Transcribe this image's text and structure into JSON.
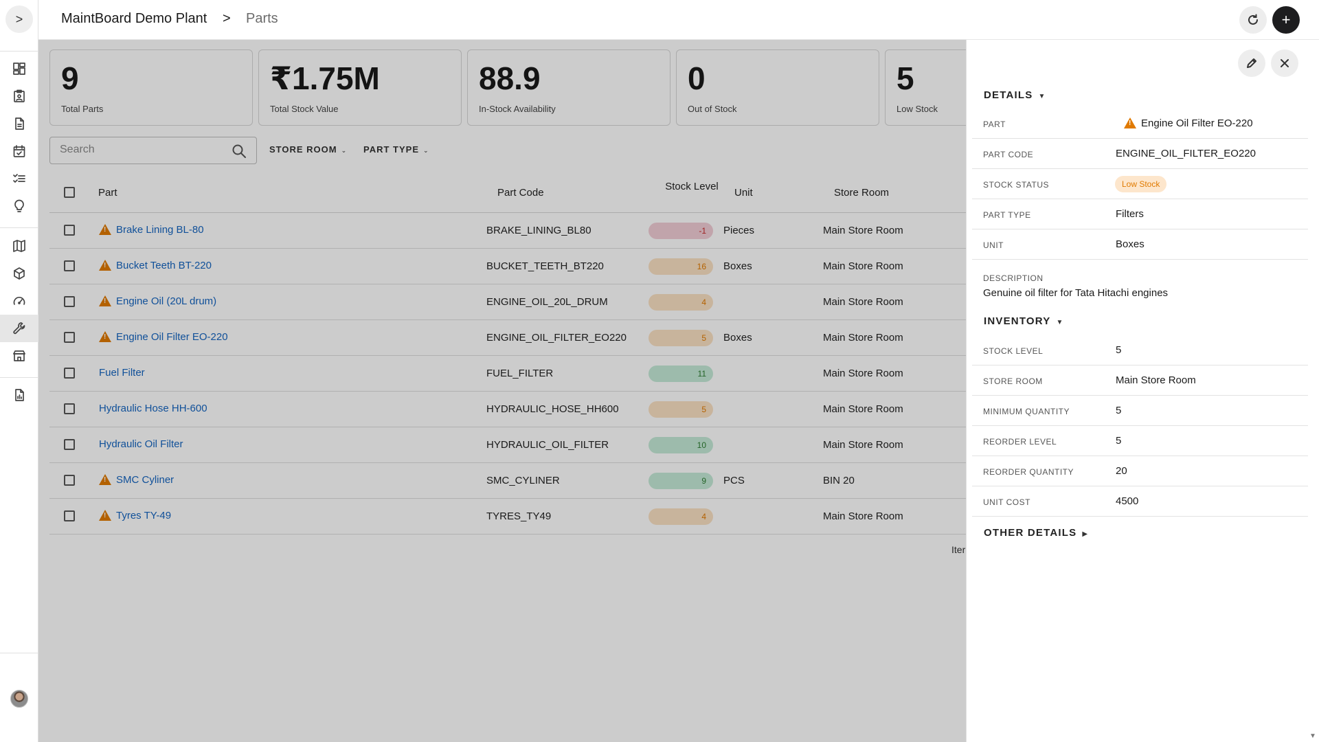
{
  "header": {
    "breadcrumb_root": "MaintBoard Demo Plant",
    "breadcrumb_separator": ">",
    "breadcrumb_current": "Parts",
    "add_label": "+"
  },
  "nav": {
    "toggle_label": ">",
    "items": [
      {
        "icon": "dashboard-icon"
      },
      {
        "icon": "clipboard-icon"
      },
      {
        "icon": "document-icon"
      },
      {
        "icon": "calendar-check-icon"
      },
      {
        "icon": "checklist-icon"
      },
      {
        "icon": "lightbulb-icon"
      },
      {
        "icon": "map-icon"
      },
      {
        "icon": "cube-icon"
      },
      {
        "icon": "gauge-icon"
      },
      {
        "icon": "wrench-icon",
        "active": true
      },
      {
        "icon": "store-icon"
      },
      {
        "icon": "report-icon"
      }
    ]
  },
  "stats": [
    {
      "value": "9",
      "label": "Total Parts"
    },
    {
      "value": "₹1.75M",
      "label": "Total Stock Value"
    },
    {
      "value": "88.9",
      "label": "In-Stock Availability"
    },
    {
      "value": "0",
      "label": "Out of Stock"
    },
    {
      "value": "5",
      "label": "Low Stock"
    }
  ],
  "toolbar": {
    "search_placeholder": "Search",
    "filter_store_room": "STORE ROOM",
    "filter_part_type": "PART TYPE"
  },
  "table": {
    "columns": {
      "part": "Part",
      "part_code": "Part Code",
      "stock_level": "Stock Level",
      "unit": "Unit",
      "store_room": "Store Room"
    },
    "rows": [
      {
        "name": "Brake Lining BL-80",
        "warning": true,
        "code": "BRAKE_LINING_BL80",
        "stock": "-1",
        "status": "neg",
        "unit": "Pieces",
        "store": "Main Store Room"
      },
      {
        "name": "Bucket Teeth BT-220",
        "warning": true,
        "code": "BUCKET_TEETH_BT220",
        "stock": "16",
        "status": "low",
        "unit": "Boxes",
        "store": "Main Store Room"
      },
      {
        "name": "Engine Oil (20L drum)",
        "warning": true,
        "code": "ENGINE_OIL_20L_DRUM",
        "stock": "4",
        "status": "low",
        "unit": "",
        "store": "Main Store Room"
      },
      {
        "name": "Engine Oil Filter EO-220",
        "warning": true,
        "code": "ENGINE_OIL_FILTER_EO220",
        "stock": "5",
        "status": "low",
        "unit": "Boxes",
        "store": "Main Store Room"
      },
      {
        "name": "Fuel Filter",
        "warning": false,
        "code": "FUEL_FILTER",
        "stock": "11",
        "status": "ok",
        "unit": "",
        "store": "Main Store Room"
      },
      {
        "name": "Hydraulic Hose HH-600",
        "warning": false,
        "code": "HYDRAULIC_HOSE_HH600",
        "stock": "5",
        "status": "low",
        "unit": "",
        "store": "Main Store Room"
      },
      {
        "name": "Hydraulic Oil Filter",
        "warning": false,
        "code": "HYDRAULIC_OIL_FILTER",
        "stock": "10",
        "status": "ok",
        "unit": "",
        "store": "Main Store Room"
      },
      {
        "name": "SMC Cyliner",
        "warning": true,
        "code": "SMC_CYLINER",
        "stock": "9",
        "status": "ok",
        "unit": "PCS",
        "store": "BIN 20"
      },
      {
        "name": "Tyres TY-49",
        "warning": true,
        "code": "TYRES_TY49",
        "stock": "4",
        "status": "low",
        "unit": "",
        "store": "Main Store Room"
      }
    ],
    "footer_partial": "Iter"
  },
  "panel": {
    "details_title": "DETAILS",
    "fields": [
      {
        "key": "PART",
        "value": "Engine Oil Filter EO-220"
      },
      {
        "key": "PART CODE",
        "value": "ENGINE_OIL_FILTER_EO220"
      },
      {
        "key": "STOCK STATUS",
        "value": "Low Stock"
      },
      {
        "key": "PART TYPE",
        "value": "Filters"
      },
      {
        "key": "UNIT",
        "value": "Boxes"
      }
    ],
    "description_key": "DESCRIPTION",
    "description_value": "Genuine oil filter for Tata Hitachi engines",
    "inventory_title": "INVENTORY",
    "inventory": [
      {
        "key": "STOCK LEVEL",
        "value": "5"
      },
      {
        "key": "STORE ROOM",
        "value": "Main Store Room"
      },
      {
        "key": "MINIMUM QUANTITY",
        "value": "5"
      },
      {
        "key": "REORDER LEVEL",
        "value": "5"
      },
      {
        "key": "REORDER QUANTITY",
        "value": "20"
      },
      {
        "key": "UNIT COST",
        "value": "4500"
      }
    ],
    "other_title": "OTHER DETAILS"
  },
  "colors": {
    "link": "#1565c0",
    "warning": "#e07a00",
    "negative": "#c62828",
    "ok": "#2e7d32"
  }
}
